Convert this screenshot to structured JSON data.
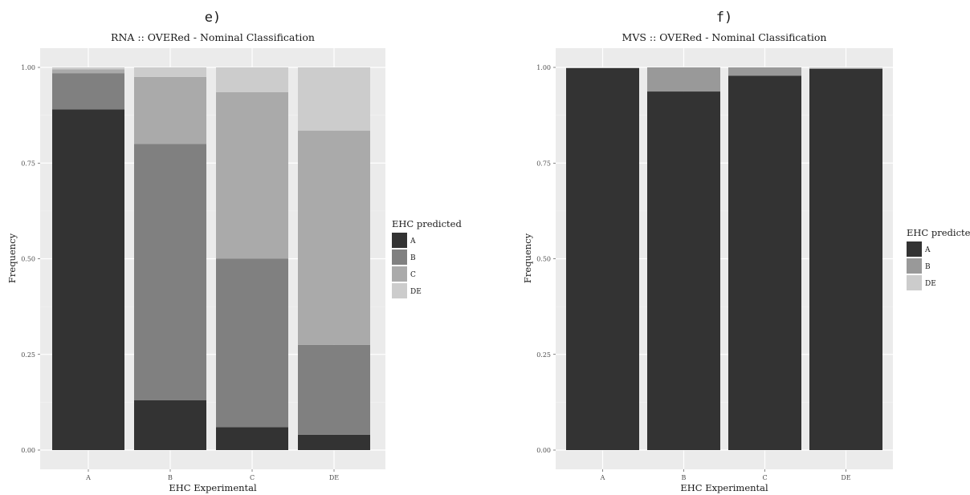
{
  "chart_data": [
    {
      "type": "bar",
      "stacked": true,
      "panel_letter": "e)",
      "title": "RNA :: OVERed - Nominal Classification",
      "xlabel": "EHC Experimental",
      "ylabel": "Frequency",
      "ylim": [
        0,
        1
      ],
      "yticks": [
        "0.00",
        "0.25",
        "0.50",
        "0.75",
        "1.00"
      ],
      "categories": [
        "A",
        "B",
        "C",
        "DE"
      ],
      "legend_title": "EHC predicted",
      "legend_position": "right",
      "series": [
        {
          "name": "A",
          "color": "#333333",
          "values": [
            0.89,
            0.13,
            0.06,
            0.04
          ]
        },
        {
          "name": "B",
          "color": "#808080",
          "values": [
            0.095,
            0.67,
            0.44,
            0.235
          ]
        },
        {
          "name": "C",
          "color": "#aaaaaa",
          "values": [
            0.01,
            0.175,
            0.435,
            0.56
          ]
        },
        {
          "name": "DE",
          "color": "#cccccc",
          "values": [
            0.005,
            0.025,
            0.065,
            0.165
          ]
        }
      ]
    },
    {
      "type": "bar",
      "stacked": true,
      "panel_letter": "f)",
      "title": "MVS :: OVERed - Nominal Classification",
      "xlabel": "EHC Experimental",
      "ylabel": "Frequency",
      "ylim": [
        0,
        1
      ],
      "yticks": [
        "0.00",
        "0.25",
        "0.50",
        "0.75",
        "1.00"
      ],
      "categories": [
        "A",
        "B",
        "C",
        "DE"
      ],
      "legend_title": "EHC predicted",
      "legend_position": "right",
      "series": [
        {
          "name": "A",
          "color": "#333333",
          "values": [
            0.998,
            0.937,
            0.978,
            0.996
          ]
        },
        {
          "name": "B",
          "color": "#999999",
          "values": [
            0.0,
            0.063,
            0.022,
            0.002
          ]
        },
        {
          "name": "DE",
          "color": "#cccccc",
          "values": [
            0.002,
            0.0,
            0.0,
            0.002
          ]
        }
      ]
    }
  ]
}
